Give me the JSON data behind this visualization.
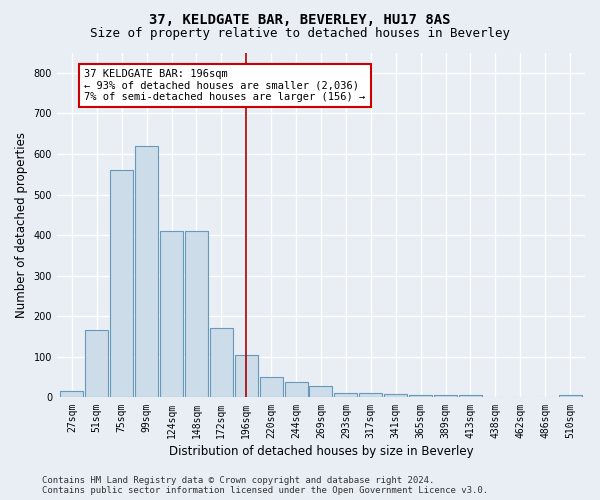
{
  "title": "37, KELDGATE BAR, BEVERLEY, HU17 8AS",
  "subtitle": "Size of property relative to detached houses in Beverley",
  "xlabel": "Distribution of detached houses by size in Beverley",
  "ylabel": "Number of detached properties",
  "footer": "Contains HM Land Registry data © Crown copyright and database right 2024.\nContains public sector information licensed under the Open Government Licence v3.0.",
  "categories": [
    "27sqm",
    "51sqm",
    "75sqm",
    "99sqm",
    "124sqm",
    "148sqm",
    "172sqm",
    "196sqm",
    "220sqm",
    "244sqm",
    "269sqm",
    "293sqm",
    "317sqm",
    "341sqm",
    "365sqm",
    "389sqm",
    "413sqm",
    "438sqm",
    "462sqm",
    "486sqm",
    "510sqm"
  ],
  "values": [
    15,
    165,
    560,
    620,
    410,
    410,
    170,
    105,
    50,
    37,
    28,
    12,
    10,
    8,
    5,
    5,
    5,
    2,
    0,
    0,
    5
  ],
  "bar_color": "#ccdce8",
  "bar_edge_color": "#6699bb",
  "highlight_index": 7,
  "highlight_line_color": "#aa0000",
  "annotation_line1": "37 KELDGATE BAR: 196sqm",
  "annotation_line2": "← 93% of detached houses are smaller (2,036)",
  "annotation_line3": "7% of semi-detached houses are larger (156) →",
  "annotation_box_color": "#ffffff",
  "annotation_box_edge_color": "#cc0000",
  "ylim": [
    0,
    850
  ],
  "yticks": [
    0,
    100,
    200,
    300,
    400,
    500,
    600,
    700,
    800
  ],
  "background_color": "#e8eef4",
  "plot_bg_color": "#e8eef4",
  "grid_color": "#ffffff",
  "title_fontsize": 10,
  "subtitle_fontsize": 9,
  "axis_label_fontsize": 8.5,
  "tick_fontsize": 7,
  "footer_fontsize": 6.5,
  "annotation_fontsize": 7.5
}
